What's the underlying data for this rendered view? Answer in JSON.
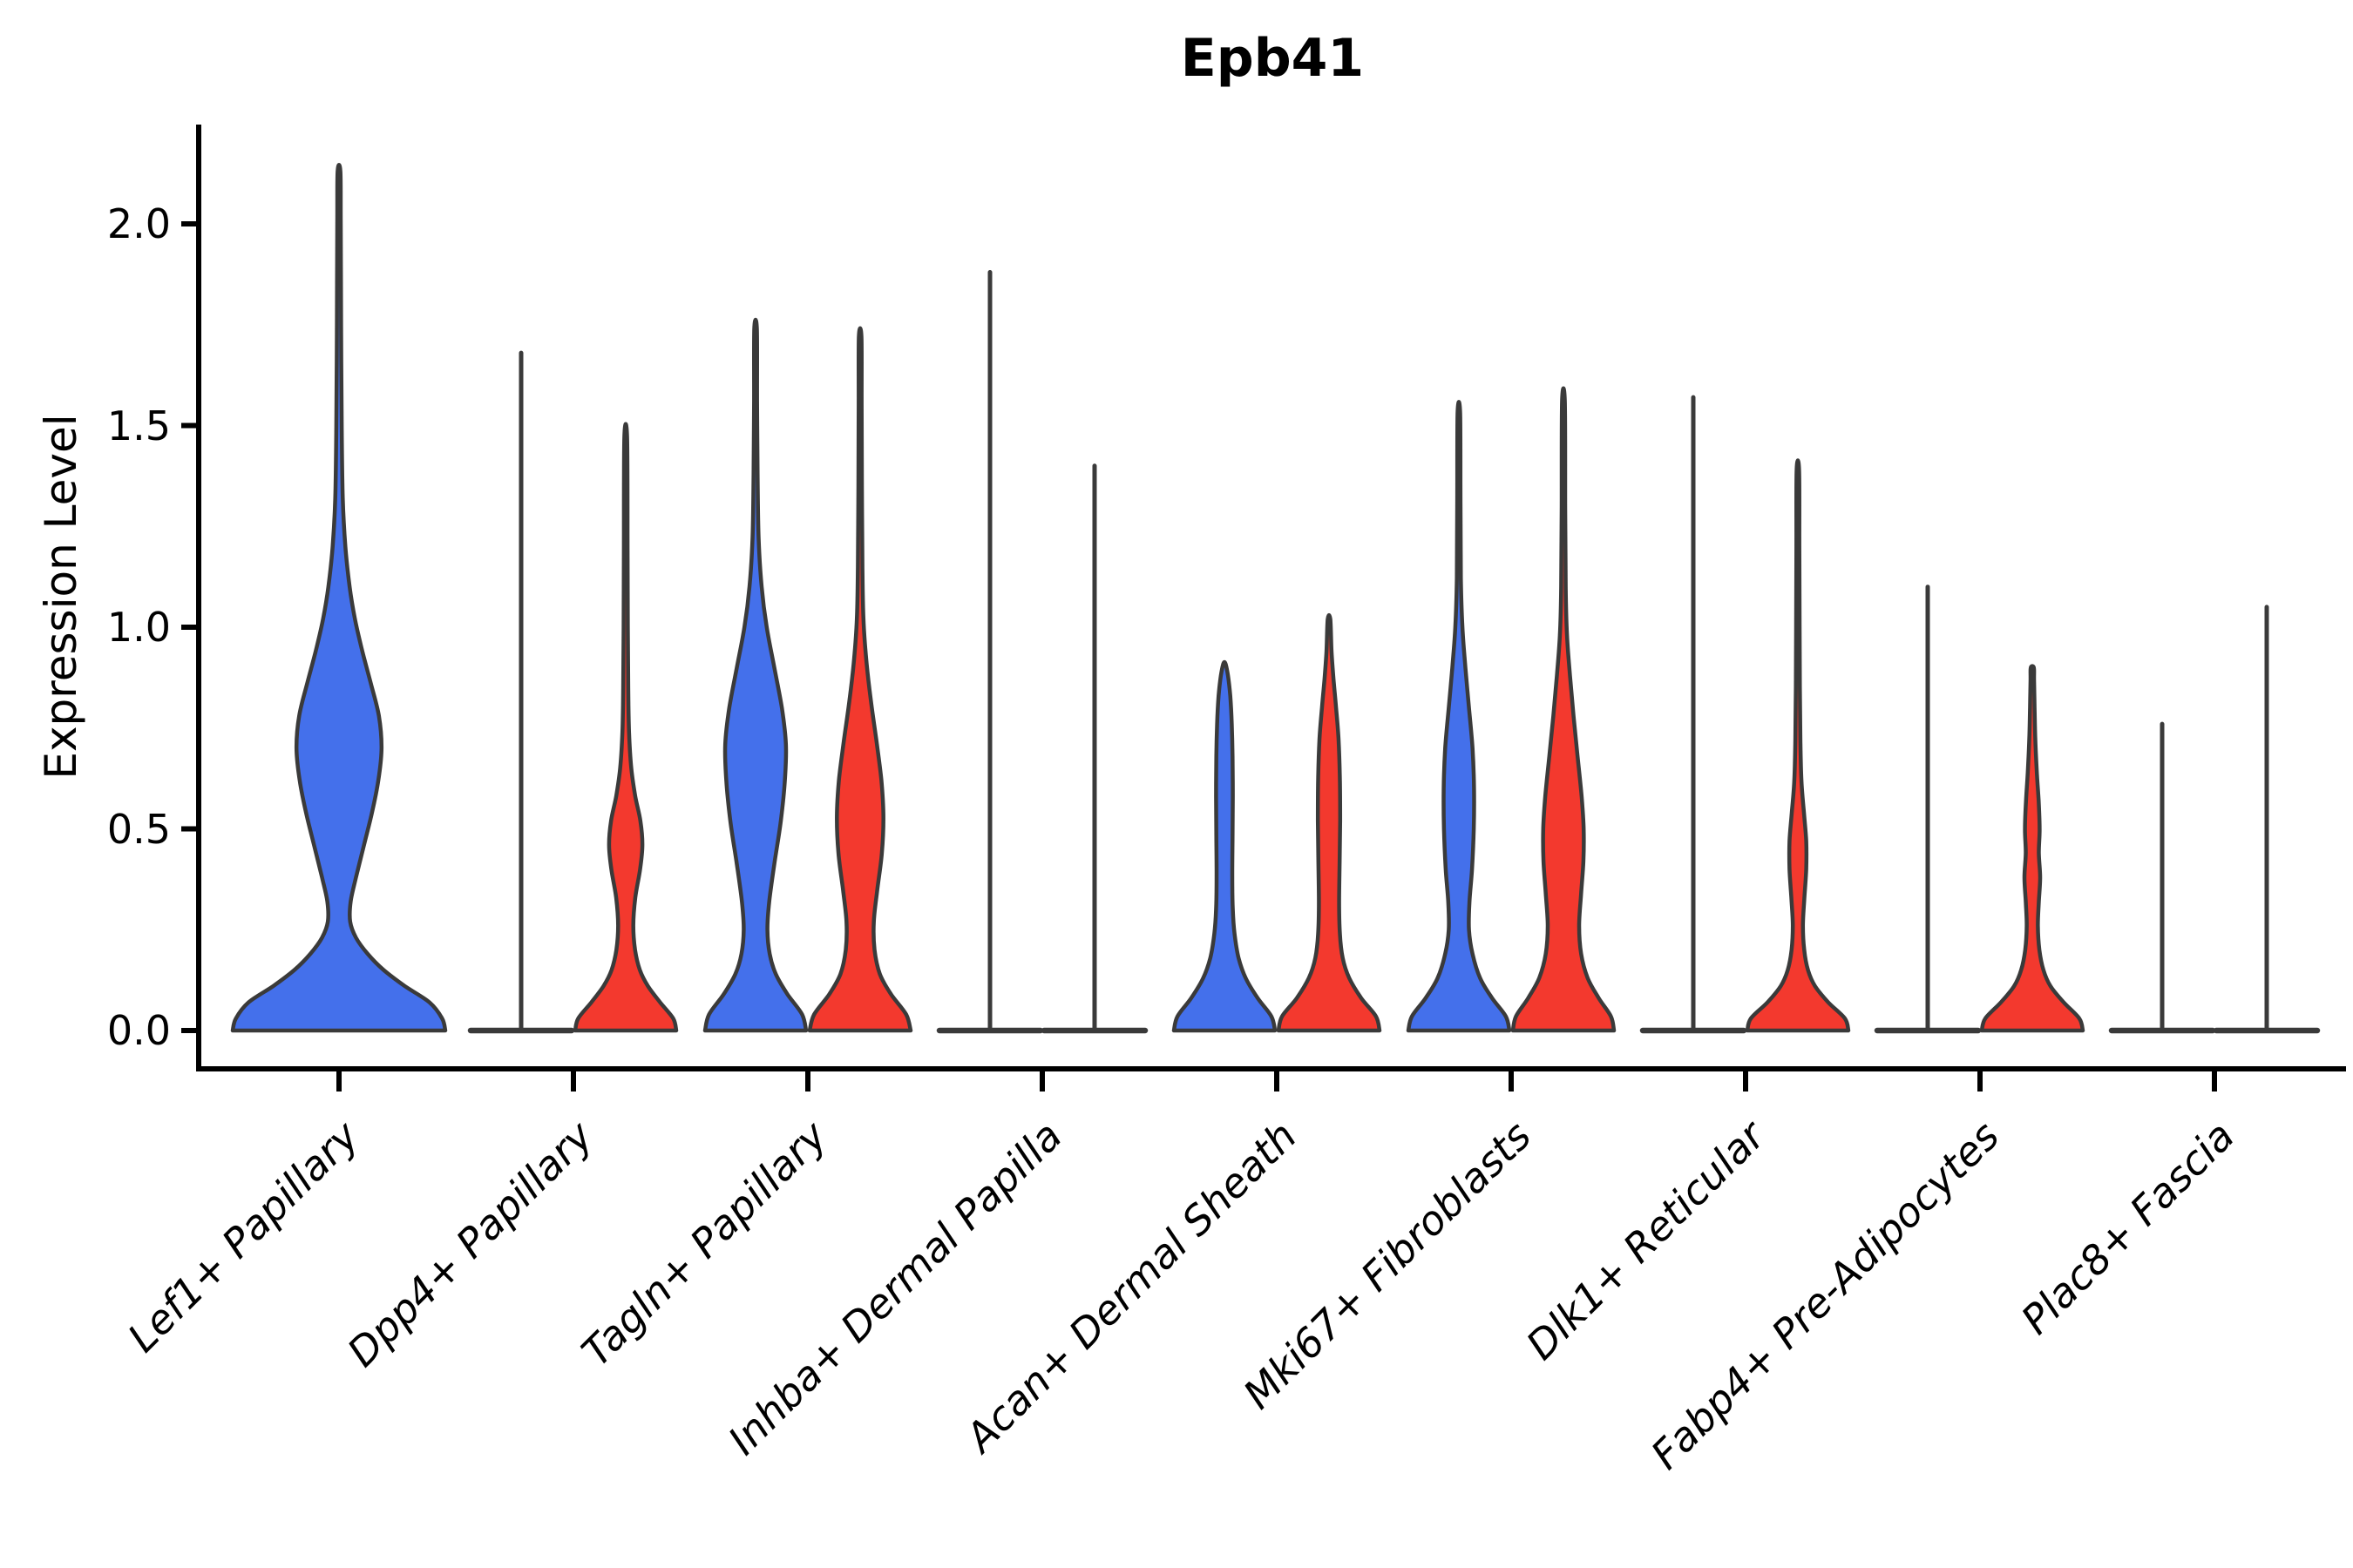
{
  "title": "Epb41",
  "chart_data": {
    "type": "violin",
    "title": "Epb41",
    "xlabel": "",
    "ylabel": "Expression Level",
    "yticks": [
      0.0,
      0.5,
      1.0,
      1.5,
      2.0
    ],
    "ylim": [
      0,
      2.25
    ],
    "grid": "off",
    "legend": "none",
    "colors": {
      "blue": "#4470EB",
      "red": "#F3392E",
      "outline": "#3A3A3A",
      "axis": "#000000"
    },
    "categories": [
      "Lef1+ Papillary",
      "Dpp4+ Papillary",
      "Tagln+ Papillary",
      "Inhba+ Dermal Papilla",
      "Acan+ Dermal Sheath",
      "Mki67+ Fibroblasts",
      "Dlk1+ Reticular",
      "Fabp4+ Pre-Adipocytes",
      "Plac8+ Fascia"
    ],
    "groups": [
      {
        "category": "Lef1+ Papillary",
        "violins": [
          {
            "side": "center",
            "color": "blue",
            "style": "violin",
            "max": 2.13,
            "half_width": 122,
            "profile": [
              [
                0,
                1.0
              ],
              [
                0.03,
                0.97
              ],
              [
                0.07,
                0.85
              ],
              [
                0.11,
                0.62
              ],
              [
                0.15,
                0.42
              ],
              [
                0.19,
                0.27
              ],
              [
                0.23,
                0.16
              ],
              [
                0.27,
                0.105
              ],
              [
                0.32,
                0.11
              ],
              [
                0.38,
                0.16
              ],
              [
                0.46,
                0.235
              ],
              [
                0.54,
                0.31
              ],
              [
                0.62,
                0.37
              ],
              [
                0.7,
                0.4
              ],
              [
                0.78,
                0.375
              ],
              [
                0.86,
                0.3
              ],
              [
                0.94,
                0.22
              ],
              [
                1.02,
                0.15
              ],
              [
                1.1,
                0.1
              ],
              [
                1.2,
                0.06
              ],
              [
                1.32,
                0.035
              ],
              [
                1.5,
                0.025
              ],
              [
                1.75,
                0.02
              ],
              [
                2.0,
                0.016
              ],
              [
                2.13,
                0.013
              ]
            ]
          }
        ]
      },
      {
        "category": "Dpp4+ Papillary",
        "violins": [
          {
            "side": "left",
            "color": "blue",
            "style": "line",
            "max": 1.68,
            "half_width": 58
          },
          {
            "side": "right",
            "color": "red",
            "style": "violin",
            "max": 1.47,
            "half_width": 58,
            "profile": [
              [
                0,
                1.0
              ],
              [
                0.03,
                0.94
              ],
              [
                0.07,
                0.68
              ],
              [
                0.11,
                0.44
              ],
              [
                0.15,
                0.28
              ],
              [
                0.2,
                0.185
              ],
              [
                0.26,
                0.15
              ],
              [
                0.33,
                0.19
              ],
              [
                0.4,
                0.285
              ],
              [
                0.46,
                0.33
              ],
              [
                0.52,
                0.29
              ],
              [
                0.58,
                0.19
              ],
              [
                0.65,
                0.11
              ],
              [
                0.74,
                0.065
              ],
              [
                0.85,
                0.05
              ],
              [
                1.0,
                0.042
              ],
              [
                1.2,
                0.036
              ],
              [
                1.47,
                0.028
              ]
            ]
          }
        ]
      },
      {
        "category": "Tagln+ Papillary",
        "violins": [
          {
            "side": "left",
            "color": "blue",
            "style": "violin",
            "max": 1.74,
            "half_width": 58,
            "profile": [
              [
                0,
                1.0
              ],
              [
                0.04,
                0.92
              ],
              [
                0.09,
                0.63
              ],
              [
                0.14,
                0.4
              ],
              [
                0.19,
                0.28
              ],
              [
                0.25,
                0.235
              ],
              [
                0.32,
                0.27
              ],
              [
                0.42,
                0.38
              ],
              [
                0.52,
                0.5
              ],
              [
                0.62,
                0.58
              ],
              [
                0.71,
                0.6
              ],
              [
                0.8,
                0.52
              ],
              [
                0.9,
                0.37
              ],
              [
                1.0,
                0.22
              ],
              [
                1.1,
                0.12
              ],
              [
                1.22,
                0.06
              ],
              [
                1.38,
                0.04
              ],
              [
                1.56,
                0.03
              ],
              [
                1.74,
                0.025
              ]
            ]
          },
          {
            "side": "right",
            "color": "red",
            "style": "violin",
            "max": 1.72,
            "half_width": 58,
            "profile": [
              [
                0,
                1.0
              ],
              [
                0.04,
                0.91
              ],
              [
                0.09,
                0.61
              ],
              [
                0.14,
                0.39
              ],
              [
                0.2,
                0.285
              ],
              [
                0.27,
                0.27
              ],
              [
                0.35,
                0.34
              ],
              [
                0.44,
                0.43
              ],
              [
                0.53,
                0.46
              ],
              [
                0.62,
                0.42
              ],
              [
                0.72,
                0.32
              ],
              [
                0.82,
                0.21
              ],
              [
                0.92,
                0.12
              ],
              [
                1.02,
                0.065
              ],
              [
                1.15,
                0.045
              ],
              [
                1.35,
                0.035
              ],
              [
                1.55,
                0.03
              ],
              [
                1.72,
                0.025
              ]
            ]
          }
        ]
      },
      {
        "category": "Inhba+ Dermal Papilla",
        "violins": [
          {
            "side": "left",
            "color": "blue",
            "style": "line",
            "max": 1.88,
            "half_width": 58
          },
          {
            "side": "right",
            "color": "red",
            "style": "line",
            "max": 1.4,
            "half_width": 58
          }
        ]
      },
      {
        "category": "Acan+ Dermal Sheath",
        "violins": [
          {
            "side": "left",
            "color": "blue",
            "style": "violin",
            "max": 0.91,
            "half_width": 58,
            "profile": [
              [
                0,
                1.0
              ],
              [
                0.035,
                0.93
              ],
              [
                0.08,
                0.66
              ],
              [
                0.13,
                0.42
              ],
              [
                0.18,
                0.28
              ],
              [
                0.24,
                0.2
              ],
              [
                0.3,
                0.165
              ],
              [
                0.38,
                0.155
              ],
              [
                0.48,
                0.16
              ],
              [
                0.58,
                0.165
              ],
              [
                0.68,
                0.16
              ],
              [
                0.76,
                0.145
              ],
              [
                0.83,
                0.115
              ],
              [
                0.88,
                0.07
              ],
              [
                0.91,
                0.02
              ]
            ]
          },
          {
            "side": "right",
            "color": "red",
            "style": "violin",
            "max": 1.02,
            "half_width": 58,
            "profile": [
              [
                0,
                1.0
              ],
              [
                0.035,
                0.93
              ],
              [
                0.08,
                0.64
              ],
              [
                0.13,
                0.4
              ],
              [
                0.18,
                0.27
              ],
              [
                0.24,
                0.215
              ],
              [
                0.32,
                0.2
              ],
              [
                0.42,
                0.21
              ],
              [
                0.52,
                0.22
              ],
              [
                0.62,
                0.215
              ],
              [
                0.72,
                0.19
              ],
              [
                0.8,
                0.14
              ],
              [
                0.87,
                0.09
              ],
              [
                0.94,
                0.05
              ],
              [
                1.02,
                0.025
              ]
            ]
          }
        ]
      },
      {
        "category": "Mki67+ Fibroblasts",
        "violins": [
          {
            "side": "left",
            "color": "blue",
            "style": "violin",
            "max": 1.53,
            "half_width": 58,
            "profile": [
              [
                0,
                1.0
              ],
              [
                0.035,
                0.93
              ],
              [
                0.08,
                0.66
              ],
              [
                0.13,
                0.42
              ],
              [
                0.19,
                0.27
              ],
              [
                0.25,
                0.2
              ],
              [
                0.32,
                0.21
              ],
              [
                0.4,
                0.26
              ],
              [
                0.5,
                0.295
              ],
              [
                0.6,
                0.3
              ],
              [
                0.7,
                0.27
              ],
              [
                0.8,
                0.2
              ],
              [
                0.9,
                0.13
              ],
              [
                1.0,
                0.07
              ],
              [
                1.12,
                0.04
              ],
              [
                1.3,
                0.032
              ],
              [
                1.53,
                0.025
              ]
            ]
          },
          {
            "side": "right",
            "color": "red",
            "style": "violin",
            "max": 1.56,
            "half_width": 58,
            "profile": [
              [
                0,
                1.0
              ],
              [
                0.035,
                0.94
              ],
              [
                0.08,
                0.7
              ],
              [
                0.13,
                0.48
              ],
              [
                0.19,
                0.35
              ],
              [
                0.26,
                0.31
              ],
              [
                0.34,
                0.35
              ],
              [
                0.42,
                0.395
              ],
              [
                0.5,
                0.4
              ],
              [
                0.58,
                0.36
              ],
              [
                0.68,
                0.28
              ],
              [
                0.78,
                0.2
              ],
              [
                0.88,
                0.13
              ],
              [
                0.98,
                0.07
              ],
              [
                1.1,
                0.045
              ],
              [
                1.3,
                0.035
              ],
              [
                1.56,
                0.027
              ]
            ]
          }
        ]
      },
      {
        "category": "Dlk1+ Reticular",
        "violins": [
          {
            "side": "left",
            "color": "blue",
            "style": "line",
            "max": 1.57,
            "half_width": 58
          },
          {
            "side": "right",
            "color": "red",
            "style": "violin",
            "max": 1.39,
            "half_width": 58,
            "profile": [
              [
                0,
                1.0
              ],
              [
                0.03,
                0.93
              ],
              [
                0.07,
                0.6
              ],
              [
                0.11,
                0.34
              ],
              [
                0.15,
                0.2
              ],
              [
                0.2,
                0.125
              ],
              [
                0.26,
                0.1
              ],
              [
                0.33,
                0.13
              ],
              [
                0.4,
                0.165
              ],
              [
                0.47,
                0.165
              ],
              [
                0.54,
                0.12
              ],
              [
                0.62,
                0.07
              ],
              [
                0.72,
                0.05
              ],
              [
                0.85,
                0.04
              ],
              [
                1.0,
                0.035
              ],
              [
                1.2,
                0.03
              ],
              [
                1.39,
                0.025
              ]
            ]
          }
        ]
      },
      {
        "category": "Fabp4+ Pre-Adipocytes",
        "violins": [
          {
            "side": "left",
            "color": "blue",
            "style": "line",
            "max": 1.1,
            "half_width": 58
          },
          {
            "side": "right",
            "color": "red",
            "style": "violin",
            "max": 0.9,
            "half_width": 58,
            "profile": [
              [
                0,
                1.0
              ],
              [
                0.03,
                0.93
              ],
              [
                0.07,
                0.62
              ],
              [
                0.11,
                0.36
              ],
              [
                0.15,
                0.22
              ],
              [
                0.2,
                0.14
              ],
              [
                0.26,
                0.11
              ],
              [
                0.32,
                0.13
              ],
              [
                0.38,
                0.155
              ],
              [
                0.44,
                0.13
              ],
              [
                0.5,
                0.145
              ],
              [
                0.57,
                0.125
              ],
              [
                0.64,
                0.09
              ],
              [
                0.72,
                0.06
              ],
              [
                0.8,
                0.045
              ],
              [
                0.87,
                0.035
              ],
              [
                0.9,
                0.03
              ]
            ]
          }
        ]
      },
      {
        "category": "Plac8+ Fascia",
        "violins": [
          {
            "side": "left",
            "color": "blue",
            "style": "line",
            "max": 0.76,
            "half_width": 58
          },
          {
            "side": "right",
            "color": "red",
            "style": "line",
            "max": 1.05,
            "half_width": 58
          }
        ]
      }
    ]
  }
}
